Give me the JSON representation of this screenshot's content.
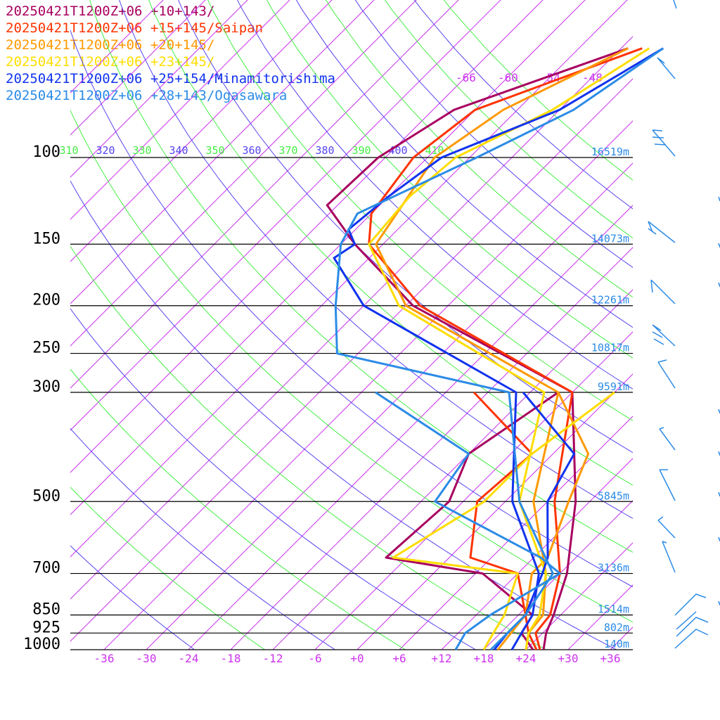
{
  "chart_data": {
    "type": "line",
    "title": "",
    "xlabel": "",
    "ylabel": "",
    "y_scale": "log",
    "ylim": [
      1000,
      50
    ],
    "xlim": [
      -40,
      39
    ],
    "pressure_levels": [
      {
        "p": 100,
        "label": "100",
        "height": "16519m"
      },
      {
        "p": 150,
        "label": "150",
        "height": "14073m"
      },
      {
        "p": 200,
        "label": "200",
        "height": "12261m"
      },
      {
        "p": 250,
        "label": "250",
        "height": "10817m"
      },
      {
        "p": 300,
        "label": "300",
        "height": "9591m"
      },
      {
        "p": 500,
        "label": "500",
        "height": "5845m"
      },
      {
        "p": 700,
        "label": "700",
        "height": "3136m"
      },
      {
        "p": 850,
        "label": "850",
        "height": "1514m"
      },
      {
        "p": 925,
        "label": "925",
        "height": "802m"
      },
      {
        "p": 1000,
        "label": "1000",
        "height": "140m"
      }
    ],
    "x_ticks": [
      {
        "v": -36,
        "label": "-36"
      },
      {
        "v": -30,
        "label": "-30"
      },
      {
        "v": -24,
        "label": "-24"
      },
      {
        "v": -18,
        "label": "-18"
      },
      {
        "v": -12,
        "label": "-12"
      },
      {
        "v": -6,
        "label": "-6"
      },
      {
        "v": 0,
        "label": "+0"
      },
      {
        "v": 6,
        "label": "+6"
      },
      {
        "v": 12,
        "label": "+12"
      },
      {
        "v": 18,
        "label": "+18"
      },
      {
        "v": 24,
        "label": "+24"
      },
      {
        "v": 30,
        "label": "+30"
      },
      {
        "v": 36,
        "label": "+36"
      }
    ],
    "isotherm_labels": [
      "-66",
      "-60",
      "-54",
      "-48"
    ],
    "theta_labels": [
      "310",
      "320",
      "330",
      "340",
      "350",
      "360",
      "370",
      "380",
      "390",
      "400",
      "410"
    ],
    "series": [
      {
        "name": "20250421T1200Z+06 +10+143/",
        "color": "#a8005f",
        "temperature": [
          [
            1000,
            26.5
          ],
          [
            925,
            24.5
          ],
          [
            850,
            23
          ],
          [
            700,
            19
          ],
          [
            500,
            10
          ],
          [
            300,
            -6
          ],
          [
            200,
            -41
          ],
          [
            150,
            -58
          ],
          [
            125,
            -67.5
          ],
          [
            100,
            -67
          ],
          [
            80,
            -63
          ],
          [
            60,
            -47
          ]
        ],
        "dewpoint": [
          [
            1000,
            25
          ],
          [
            925,
            21
          ],
          [
            850,
            20
          ],
          [
            700,
            7
          ],
          [
            650,
            -9
          ],
          [
            500,
            -8
          ],
          [
            400,
            -12
          ],
          [
            300,
            -8
          ]
        ]
      },
      {
        "name": "20250421T1200Z+06 +15+145/Saipan",
        "color": "#ff3300",
        "temperature": [
          [
            1000,
            26
          ],
          [
            925,
            23
          ],
          [
            850,
            22.5
          ],
          [
            700,
            18
          ],
          [
            500,
            7
          ],
          [
            300,
            -6
          ],
          [
            200,
            -40
          ],
          [
            150,
            -56
          ],
          [
            130,
            -60
          ],
          [
            100,
            -62
          ],
          [
            80,
            -60
          ],
          [
            60,
            -45
          ]
        ],
        "dewpoint": [
          [
            1000,
            25.5
          ],
          [
            925,
            22
          ],
          [
            850,
            19
          ],
          [
            700,
            12
          ],
          [
            650,
            3
          ],
          [
            500,
            -4
          ],
          [
            400,
            -3
          ],
          [
            300,
            -20
          ]
        ]
      },
      {
        "name": "20250421T1200Z+06 +20+145/",
        "color": "#ff9900",
        "temperature": [
          [
            1000,
            24
          ],
          [
            925,
            22
          ],
          [
            850,
            21.5
          ],
          [
            700,
            16
          ],
          [
            500,
            4
          ],
          [
            300,
            -8
          ],
          [
            200,
            -42
          ],
          [
            150,
            -55
          ],
          [
            100,
            -59
          ],
          [
            80,
            -56
          ],
          [
            60,
            -47
          ]
        ],
        "dewpoint": [
          [
            1000,
            20
          ],
          [
            925,
            19.5
          ],
          [
            850,
            19
          ],
          [
            700,
            14
          ],
          [
            650,
            14
          ],
          [
            500,
            9
          ],
          [
            400,
            5
          ],
          [
            300,
            -8
          ]
        ]
      },
      {
        "name": "20250421T1200Z+06 +23+145/",
        "color": "#ffdd00",
        "temperature": [
          [
            1000,
            24
          ],
          [
            925,
            22
          ],
          [
            850,
            21
          ],
          [
            700,
            16
          ],
          [
            500,
            2
          ],
          [
            300,
            -10
          ],
          [
            200,
            -43
          ],
          [
            150,
            -56
          ],
          [
            120,
            -57
          ],
          [
            100,
            -56
          ],
          [
            80,
            -49
          ],
          [
            60,
            -44
          ]
        ],
        "dewpoint": [
          [
            1000,
            18
          ],
          [
            925,
            17
          ],
          [
            850,
            16
          ],
          [
            700,
            12
          ],
          [
            650,
            -8
          ],
          [
            500,
            -3
          ],
          [
            400,
            -3
          ],
          [
            300,
            0
          ]
        ]
      },
      {
        "name": "20250421T1200Z+06 +25+154/Minamitorishima",
        "color": "#1133ee",
        "temperature": [
          [
            1000,
            22
          ],
          [
            925,
            21
          ],
          [
            850,
            20
          ],
          [
            700,
            15
          ],
          [
            500,
            1
          ],
          [
            300,
            -14
          ],
          [
            200,
            -48
          ],
          [
            160,
            -59
          ],
          [
            150,
            -58
          ],
          [
            140,
            -61
          ],
          [
            120,
            -60
          ],
          [
            100,
            -58
          ],
          [
            80,
            -48
          ],
          [
            60,
            -42
          ]
        ],
        "dewpoint": [
          [
            1000,
            19.5
          ],
          [
            925,
            19
          ],
          [
            850,
            19
          ],
          [
            700,
            15.5
          ],
          [
            650,
            14
          ],
          [
            500,
            6
          ],
          [
            400,
            3
          ],
          [
            300,
            -13
          ]
        ]
      },
      {
        "name": "20250421T1200Z+06 +28+143/Ogasawara",
        "color": "#2b8be6",
        "temperature": [
          [
            1000,
            19
          ],
          [
            925,
            19
          ],
          [
            850,
            19
          ],
          [
            700,
            17
          ],
          [
            500,
            2
          ],
          [
            300,
            -15
          ],
          [
            250,
            -45
          ],
          [
            200,
            -52
          ],
          [
            150,
            -60
          ],
          [
            130,
            -62
          ],
          [
            100,
            -53
          ],
          [
            80,
            -46
          ],
          [
            60,
            -42
          ]
        ],
        "dewpoint": [
          [
            1000,
            14
          ],
          [
            925,
            13
          ],
          [
            850,
            14
          ],
          [
            700,
            18
          ],
          [
            650,
            13
          ],
          [
            500,
            -10
          ],
          [
            400,
            -12
          ],
          [
            300,
            -34
          ]
        ]
      }
    ]
  }
}
